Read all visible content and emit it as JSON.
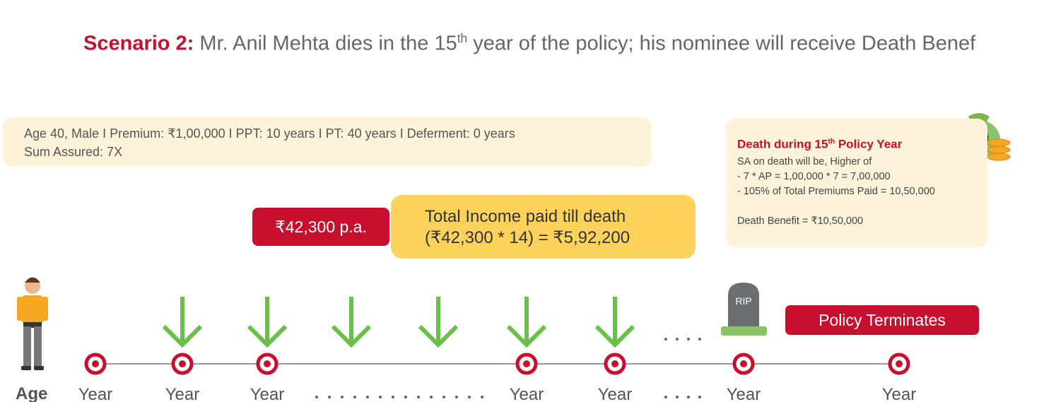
{
  "header": {
    "label": "Scenario 2:",
    "text_before": "Mr. Anil Mehta dies in the 15",
    "superscript": "th",
    "text_after": " year of the policy; his nominee will receive Death Benef"
  },
  "info": {
    "lines": [
      "Age 40, Male I Premium: ₹1,00,000 I PPT: 10 years I PT: 40 years I Deferment: 0 years",
      "Sum Assured: 7X"
    ]
  },
  "income": {
    "rate": "₹42,300 p.a.",
    "lines": [
      "Total Income paid till death",
      "(₹42,300 * 14) = ₹5,92,200"
    ]
  },
  "death": {
    "title_before": "Death during 15",
    "superscript": "th",
    "title_after": " Policy Year",
    "lines": [
      "SA on death will be, Higher of",
      "- 7 * AP = 1,00,000 * 7 = 7,00,000",
      "- 105% of Total Premiums Paid = 10,50,000",
      "Death Benefit = ₹10,50,000"
    ]
  },
  "status": "Policy Terminates",
  "tombstone": "RIP",
  "timeline": {
    "age_label": "Age",
    "year_labels": [
      "Year",
      "Year",
      "Year",
      "Year",
      "Year",
      "Year",
      "Year"
    ]
  }
}
